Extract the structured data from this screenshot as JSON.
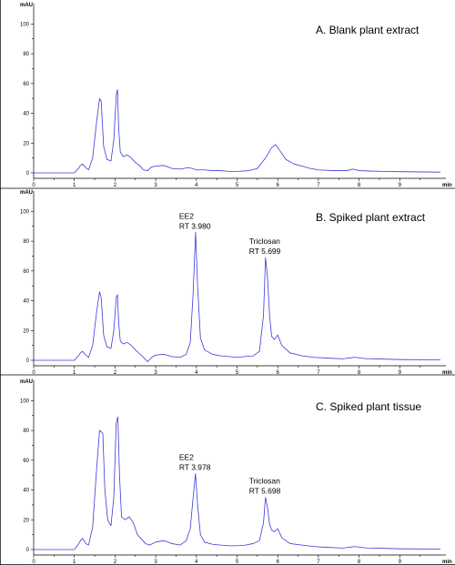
{
  "chart_data": [
    {
      "type": "line",
      "title": "A.  Blank plant extract",
      "ylabel": "mAU",
      "xlabel": "min",
      "xlim": [
        0,
        10
      ],
      "ylim": [
        0,
        110
      ],
      "x_ticks": [
        "0",
        "1",
        "2",
        "3",
        "4",
        "5",
        "6",
        "7",
        "8",
        "9"
      ],
      "y_ticks": [
        "0",
        "20",
        "40",
        "60",
        "80",
        "100"
      ],
      "annotations": [],
      "series": [
        {
          "x": [
            0,
            1.0,
            1.1,
            1.15,
            1.2,
            1.28,
            1.35,
            1.45,
            1.55,
            1.62,
            1.66,
            1.72,
            1.8,
            1.9,
            1.97,
            2.03,
            2.06,
            2.09,
            2.13,
            2.2,
            2.3,
            2.4,
            2.5,
            2.6,
            2.7,
            2.8,
            2.9,
            3.0,
            3.2,
            3.4,
            3.6,
            3.8,
            3.9,
            4.0,
            4.2,
            4.4,
            4.6,
            4.8,
            5.0,
            5.3,
            5.5,
            5.7,
            5.85,
            5.95,
            6.05,
            6.2,
            6.4,
            6.6,
            6.8,
            7.0,
            7.4,
            7.7,
            7.85,
            8.0,
            8.3,
            8.6,
            9.0,
            10.0
          ],
          "y": [
            0,
            0,
            3,
            5,
            6,
            3.5,
            2,
            10,
            35,
            50,
            48,
            18,
            9,
            8,
            22,
            52,
            56,
            30,
            14,
            11,
            12,
            10,
            7,
            5,
            2,
            1.5,
            4,
            4.5,
            5,
            3,
            2.5,
            3.5,
            3,
            2,
            2,
            1.5,
            1.5,
            1,
            1,
            1.5,
            3,
            10,
            17,
            19,
            15,
            9,
            6,
            4.5,
            3,
            2,
            1.5,
            1.5,
            2.5,
            1.5,
            1.2,
            1,
            0.8,
            0.5
          ]
        }
      ]
    },
    {
      "type": "line",
      "title": "B.  Spiked plant extract",
      "ylabel": "mAU",
      "xlabel": "min",
      "xlim": [
        0,
        10
      ],
      "ylim": [
        0,
        110
      ],
      "x_ticks": [
        "0",
        "1",
        "2",
        "3",
        "4",
        "5",
        "6",
        "7",
        "8",
        "9"
      ],
      "y_ticks": [
        "0",
        "20",
        "40",
        "60",
        "80",
        "100"
      ],
      "annotations": [
        {
          "line1": "EE2",
          "line2": "RT 3.980",
          "x": 3.98,
          "y": 86
        },
        {
          "line1": "Triclosan",
          "line2": "RT 5.699",
          "x": 5.699,
          "y": 69
        }
      ],
      "series": [
        {
          "x": [
            0,
            1.0,
            1.1,
            1.15,
            1.2,
            1.28,
            1.35,
            1.45,
            1.55,
            1.62,
            1.66,
            1.72,
            1.8,
            1.9,
            1.97,
            2.03,
            2.06,
            2.09,
            2.13,
            2.2,
            2.3,
            2.4,
            2.5,
            2.6,
            2.7,
            2.8,
            2.9,
            3.0,
            3.2,
            3.4,
            3.6,
            3.75,
            3.85,
            3.92,
            3.98,
            4.03,
            4.1,
            4.2,
            4.4,
            4.6,
            4.8,
            5.0,
            5.2,
            5.4,
            5.55,
            5.65,
            5.699,
            5.75,
            5.8,
            5.85,
            5.92,
            6.0,
            6.1,
            6.3,
            6.6,
            6.9,
            7.2,
            7.6,
            7.9,
            8.2,
            8.6,
            9.0,
            10.0
          ],
          "y": [
            0,
            0,
            3,
            5,
            6,
            3.5,
            2,
            10,
            33,
            46,
            42,
            17,
            9,
            8,
            20,
            42,
            44,
            25,
            13,
            11,
            12,
            10,
            7,
            4.5,
            2,
            -1,
            2,
            3.5,
            4,
            2.5,
            2,
            4,
            12,
            45,
            86,
            50,
            15,
            7,
            4,
            3,
            2.5,
            2,
            2.5,
            3,
            6,
            30,
            69,
            55,
            30,
            16,
            14,
            17,
            10,
            5,
            3,
            2,
            1.5,
            1,
            2,
            1,
            0.8,
            0.5,
            0.3
          ]
        }
      ]
    },
    {
      "type": "line",
      "title": "C.  Spiked plant tissue",
      "ylabel": "mAU",
      "xlabel": "min",
      "xlim": [
        0,
        10
      ],
      "ylim": [
        0,
        110
      ],
      "x_ticks": [
        "0",
        "1",
        "2",
        "3",
        "4",
        "5",
        "6",
        "7",
        "8",
        "9"
      ],
      "y_ticks": [
        "0",
        "20",
        "40",
        "60",
        "80",
        "100"
      ],
      "annotations": [
        {
          "line1": "EE2",
          "line2": "RT 3.978",
          "x": 3.978,
          "y": 51
        },
        {
          "line1": "Triclosan",
          "line2": "RT 5.698",
          "x": 5.698,
          "y": 35
        }
      ],
      "series": [
        {
          "x": [
            0,
            1.0,
            1.1,
            1.15,
            1.2,
            1.28,
            1.35,
            1.45,
            1.55,
            1.62,
            1.66,
            1.7,
            1.75,
            1.82,
            1.9,
            1.97,
            2.03,
            2.07,
            2.11,
            2.16,
            2.25,
            2.35,
            2.45,
            2.55,
            2.65,
            2.75,
            2.85,
            3.0,
            3.2,
            3.4,
            3.6,
            3.75,
            3.85,
            3.92,
            3.978,
            4.03,
            4.1,
            4.2,
            4.4,
            4.6,
            4.8,
            5.0,
            5.2,
            5.4,
            5.55,
            5.65,
            5.698,
            5.75,
            5.8,
            5.85,
            5.92,
            6.0,
            6.1,
            6.3,
            6.6,
            6.9,
            7.2,
            7.6,
            7.9,
            8.2,
            8.6,
            9.0,
            10.0
          ],
          "y": [
            0,
            0,
            3.5,
            6,
            7.5,
            4,
            3,
            15,
            55,
            80,
            79,
            78,
            40,
            20,
            16,
            35,
            85,
            89,
            50,
            22,
            20,
            22,
            18,
            10,
            7,
            4,
            3,
            5,
            6,
            4,
            3,
            6,
            14,
            35,
            51,
            30,
            10,
            5,
            3.5,
            3,
            2.5,
            2.5,
            3,
            4,
            6,
            18,
            35,
            28,
            17,
            13,
            12,
            14,
            8,
            4,
            3,
            2,
            1.5,
            1,
            2,
            1,
            0.8,
            0.5,
            0.3
          ]
        }
      ]
    }
  ]
}
